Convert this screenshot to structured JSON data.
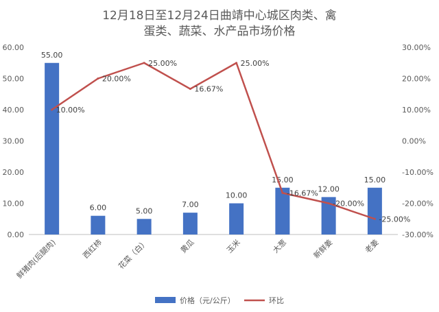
{
  "chart_data": {
    "type": "bar",
    "title_lines": [
      "12月18日至12月24日曲靖中心城区肉类、禽",
      "蛋类、蔬菜、水产品市场价格"
    ],
    "categories": [
      "鲜猪肉(后腿肉)",
      "西红柿",
      "花菜（白）",
      "黄瓜",
      "玉米",
      "大葱",
      "新鲜姜",
      "老姜"
    ],
    "series": [
      {
        "name": "价格（元/公斤）",
        "chart": "bar",
        "axis": "left",
        "color": "#4472C4",
        "values": [
          55.0,
          6.0,
          5.0,
          7.0,
          10.0,
          15.0,
          12.0,
          15.0
        ],
        "labels": [
          "55.00",
          "6.00",
          "5.00",
          "7.00",
          "10.00",
          "15.00",
          "12.00",
          "15.00"
        ]
      },
      {
        "name": "环比",
        "chart": "line",
        "axis": "right",
        "color": "#C0504D",
        "values": [
          10.0,
          20.0,
          25.0,
          16.67,
          25.0,
          -16.67,
          -20.0,
          -25.0
        ],
        "labels": [
          "10.00%",
          "20.00%",
          "25.00%",
          "16.67%",
          "25.00%",
          "-16.67%",
          "-20.00%",
          "-25.00%"
        ]
      }
    ],
    "left_axis": {
      "ylim": [
        0,
        60
      ],
      "ticks": [
        0,
        10,
        20,
        30,
        40,
        50,
        60
      ],
      "tick_labels": [
        "0.00",
        "10.00",
        "20.00",
        "30.00",
        "40.00",
        "50.00",
        "60.00"
      ]
    },
    "right_axis": {
      "ylim": [
        -30,
        30
      ],
      "ticks": [
        -30,
        -20,
        -10,
        0,
        10,
        20,
        30
      ],
      "tick_labels": [
        "-30.00%",
        "-20.00%",
        "-10.00%",
        "0.00%",
        "10.00%",
        "20.00%",
        "30.00%"
      ]
    },
    "gridlines": false,
    "legend_position": "bottom"
  }
}
